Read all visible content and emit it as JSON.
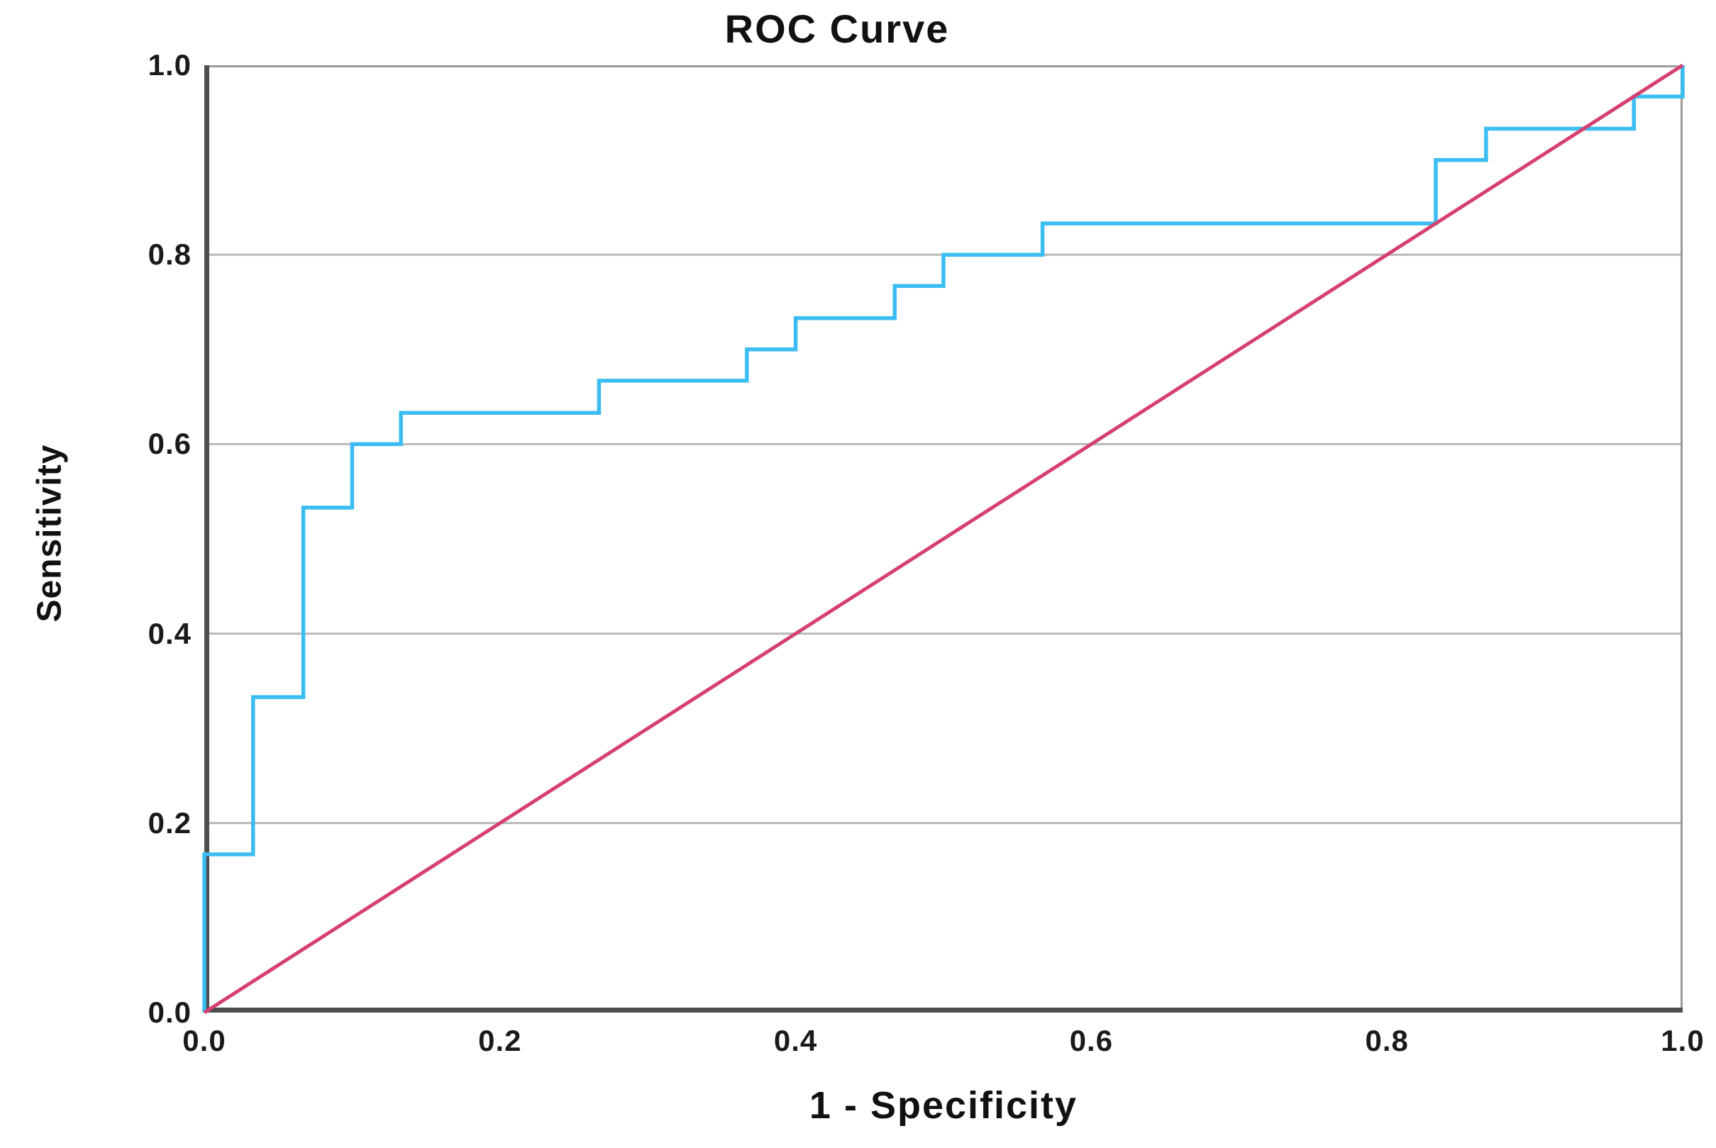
{
  "title": "ROC Curve",
  "axes": {
    "x_label": "1 - Specificity",
    "y_label": "Sensitivity",
    "x_ticks": {
      "values": [
        0.0,
        0.2,
        0.4,
        0.6,
        0.8,
        1.0
      ],
      "labels": [
        "0.0",
        "0.2",
        "0.4",
        "0.6",
        "0.8",
        "1.0"
      ]
    },
    "y_ticks": {
      "values": [
        0.0,
        0.2,
        0.4,
        0.6,
        0.8,
        1.0
      ],
      "labels": [
        "0.0",
        "0.2",
        "0.4",
        "0.6",
        "0.8",
        "1.0"
      ]
    },
    "x_range": [
      0,
      1
    ],
    "y_range": [
      0,
      1
    ]
  },
  "colors": {
    "roc_curve": "#3BBDF2",
    "reference_line": "#D6406F",
    "gridline": "#b8b8b8",
    "frame": "#9a9a9a",
    "axis": "#4e4e4e",
    "text": "#111111",
    "background": "#ffffff"
  },
  "chart_data": {
    "type": "line",
    "title": "ROC Curve",
    "xlabel": "1 - Specificity",
    "ylabel": "Sensitivity",
    "xlim": [
      0,
      1
    ],
    "ylim": [
      0,
      1
    ],
    "grid": "horizontal gridlines at 0.2 intervals",
    "legend": "none",
    "series": [
      {
        "name": "ROC step curve",
        "color": "#3BBDF2",
        "style": "step",
        "points": [
          [
            0.0,
            0.0
          ],
          [
            0.0,
            0.167
          ],
          [
            0.033,
            0.167
          ],
          [
            0.033,
            0.333
          ],
          [
            0.067,
            0.333
          ],
          [
            0.067,
            0.533
          ],
          [
            0.1,
            0.533
          ],
          [
            0.1,
            0.6
          ],
          [
            0.133,
            0.6
          ],
          [
            0.133,
            0.633
          ],
          [
            0.267,
            0.633
          ],
          [
            0.267,
            0.667
          ],
          [
            0.367,
            0.667
          ],
          [
            0.367,
            0.7
          ],
          [
            0.4,
            0.7
          ],
          [
            0.4,
            0.733
          ],
          [
            0.467,
            0.733
          ],
          [
            0.467,
            0.767
          ],
          [
            0.5,
            0.767
          ],
          [
            0.5,
            0.8
          ],
          [
            0.567,
            0.8
          ],
          [
            0.567,
            0.833
          ],
          [
            0.833,
            0.833
          ],
          [
            0.833,
            0.9
          ],
          [
            0.867,
            0.9
          ],
          [
            0.867,
            0.933
          ],
          [
            0.967,
            0.933
          ],
          [
            0.967,
            0.967
          ],
          [
            1.0,
            0.967
          ],
          [
            1.0,
            1.0
          ]
        ]
      },
      {
        "name": "Reference diagonal",
        "color": "#D6406F",
        "style": "straight",
        "points": [
          [
            0.0,
            0.0
          ],
          [
            1.0,
            1.0
          ]
        ]
      }
    ]
  }
}
